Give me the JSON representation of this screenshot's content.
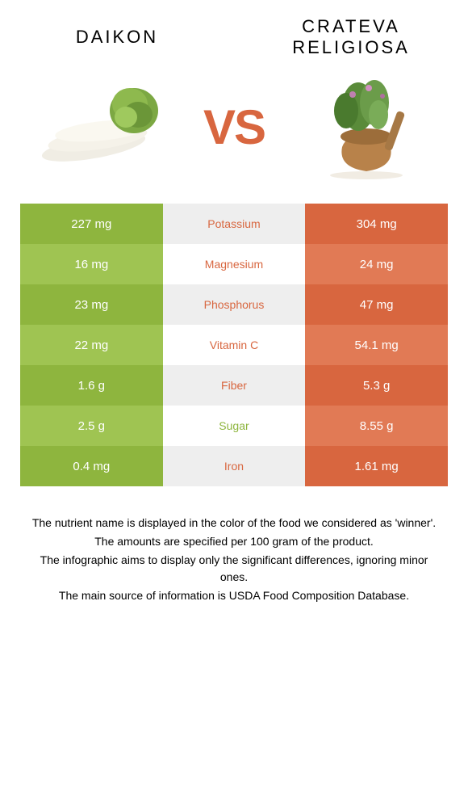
{
  "left_food": {
    "title": "DAIKON",
    "color_dark": "#8eb53e",
    "color_light": "#9fc452"
  },
  "right_food": {
    "title": "CRATEVA RELIGIOSA",
    "color_dark": "#d8663f",
    "color_light": "#e17a55"
  },
  "vs_label": "VS",
  "vs_color": "#d8663f",
  "mid_color_odd": "#eeeeee",
  "mid_color_even": "#ffffff",
  "rows": [
    {
      "left": "227 mg",
      "label": "Potassium",
      "right": "304 mg",
      "winner": "right"
    },
    {
      "left": "16 mg",
      "label": "Magnesium",
      "right": "24 mg",
      "winner": "right"
    },
    {
      "left": "23 mg",
      "label": "Phosphorus",
      "right": "47 mg",
      "winner": "right"
    },
    {
      "left": "22 mg",
      "label": "Vitamin C",
      "right": "54.1 mg",
      "winner": "right"
    },
    {
      "left": "1.6 g",
      "label": "Fiber",
      "right": "5.3 g",
      "winner": "right"
    },
    {
      "left": "2.5 g",
      "label": "Sugar",
      "right": "8.55 g",
      "winner": "left"
    },
    {
      "left": "0.4 mg",
      "label": "Iron",
      "right": "1.61 mg",
      "winner": "right"
    }
  ],
  "footer_lines": [
    "The nutrient name is displayed in the color of the food we considered as 'winner'.",
    "The amounts are specified per 100 gram of the product.",
    "The infographic aims to display only the significant differences, ignoring minor ones.",
    "The main source of information is USDA Food Composition Database."
  ]
}
